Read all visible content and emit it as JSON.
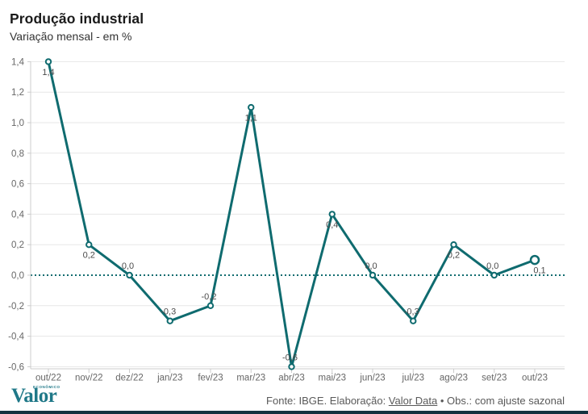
{
  "header": {
    "title": "Produção industrial",
    "subtitle": "Variação mensal - em %"
  },
  "footer": {
    "source_prefix": "Fonte: IBGE. Elaboração: ",
    "source_link": "Valor Data",
    "source_suffix": " • Obs.: com ajuste sazonal",
    "logo": {
      "text": "Valor",
      "super": "ECONÔMICO"
    }
  },
  "colors": {
    "line": "#0f6b6f",
    "zero_line": "#0f6b6f",
    "grid": "#e7e7e7",
    "axis": "#cccccc",
    "tick_label": "#666666",
    "value_label": "#4a4a4a",
    "logo": "#1f7888",
    "bottom_bar": "#14323f"
  },
  "chart_data": {
    "type": "line",
    "title": "Produção industrial",
    "subtitle": "Variação mensal - em %",
    "categories": [
      "out/22",
      "nov/22",
      "dez/22",
      "jan/23",
      "fev/23",
      "mar/23",
      "abr/23",
      "mai/23",
      "jun/23",
      "jul/23",
      "ago/23",
      "set/23",
      "out/23"
    ],
    "values": [
      1.4,
      0.2,
      0.0,
      -0.3,
      -0.2,
      1.1,
      -0.6,
      0.4,
      0.0,
      -0.3,
      0.2,
      0.0,
      0.1
    ],
    "point_labels": [
      "1,4",
      "0,2",
      "0,0",
      "-0,3",
      "-0,2",
      "1,1",
      "-0,6",
      "0,4",
      "0,0",
      "-0,3",
      "0,2",
      "0,0",
      "0,1"
    ],
    "label_side": [
      "below",
      "below",
      "above",
      "above",
      "above",
      "below",
      "above",
      "below",
      "above",
      "above",
      "below",
      "above",
      "below"
    ],
    "ylim": [
      -0.6,
      1.4
    ],
    "ytick_step": 0.2,
    "ytick_labels": [
      "-0,6",
      "-0,4",
      "-0,2",
      "0,0",
      "0,2",
      "0,4",
      "0,6",
      "0,8",
      "1,0",
      "1,2",
      "1,4"
    ],
    "zero_line_style": "dotted",
    "grid": true,
    "legend": false,
    "last_point_emphasis": true
  }
}
